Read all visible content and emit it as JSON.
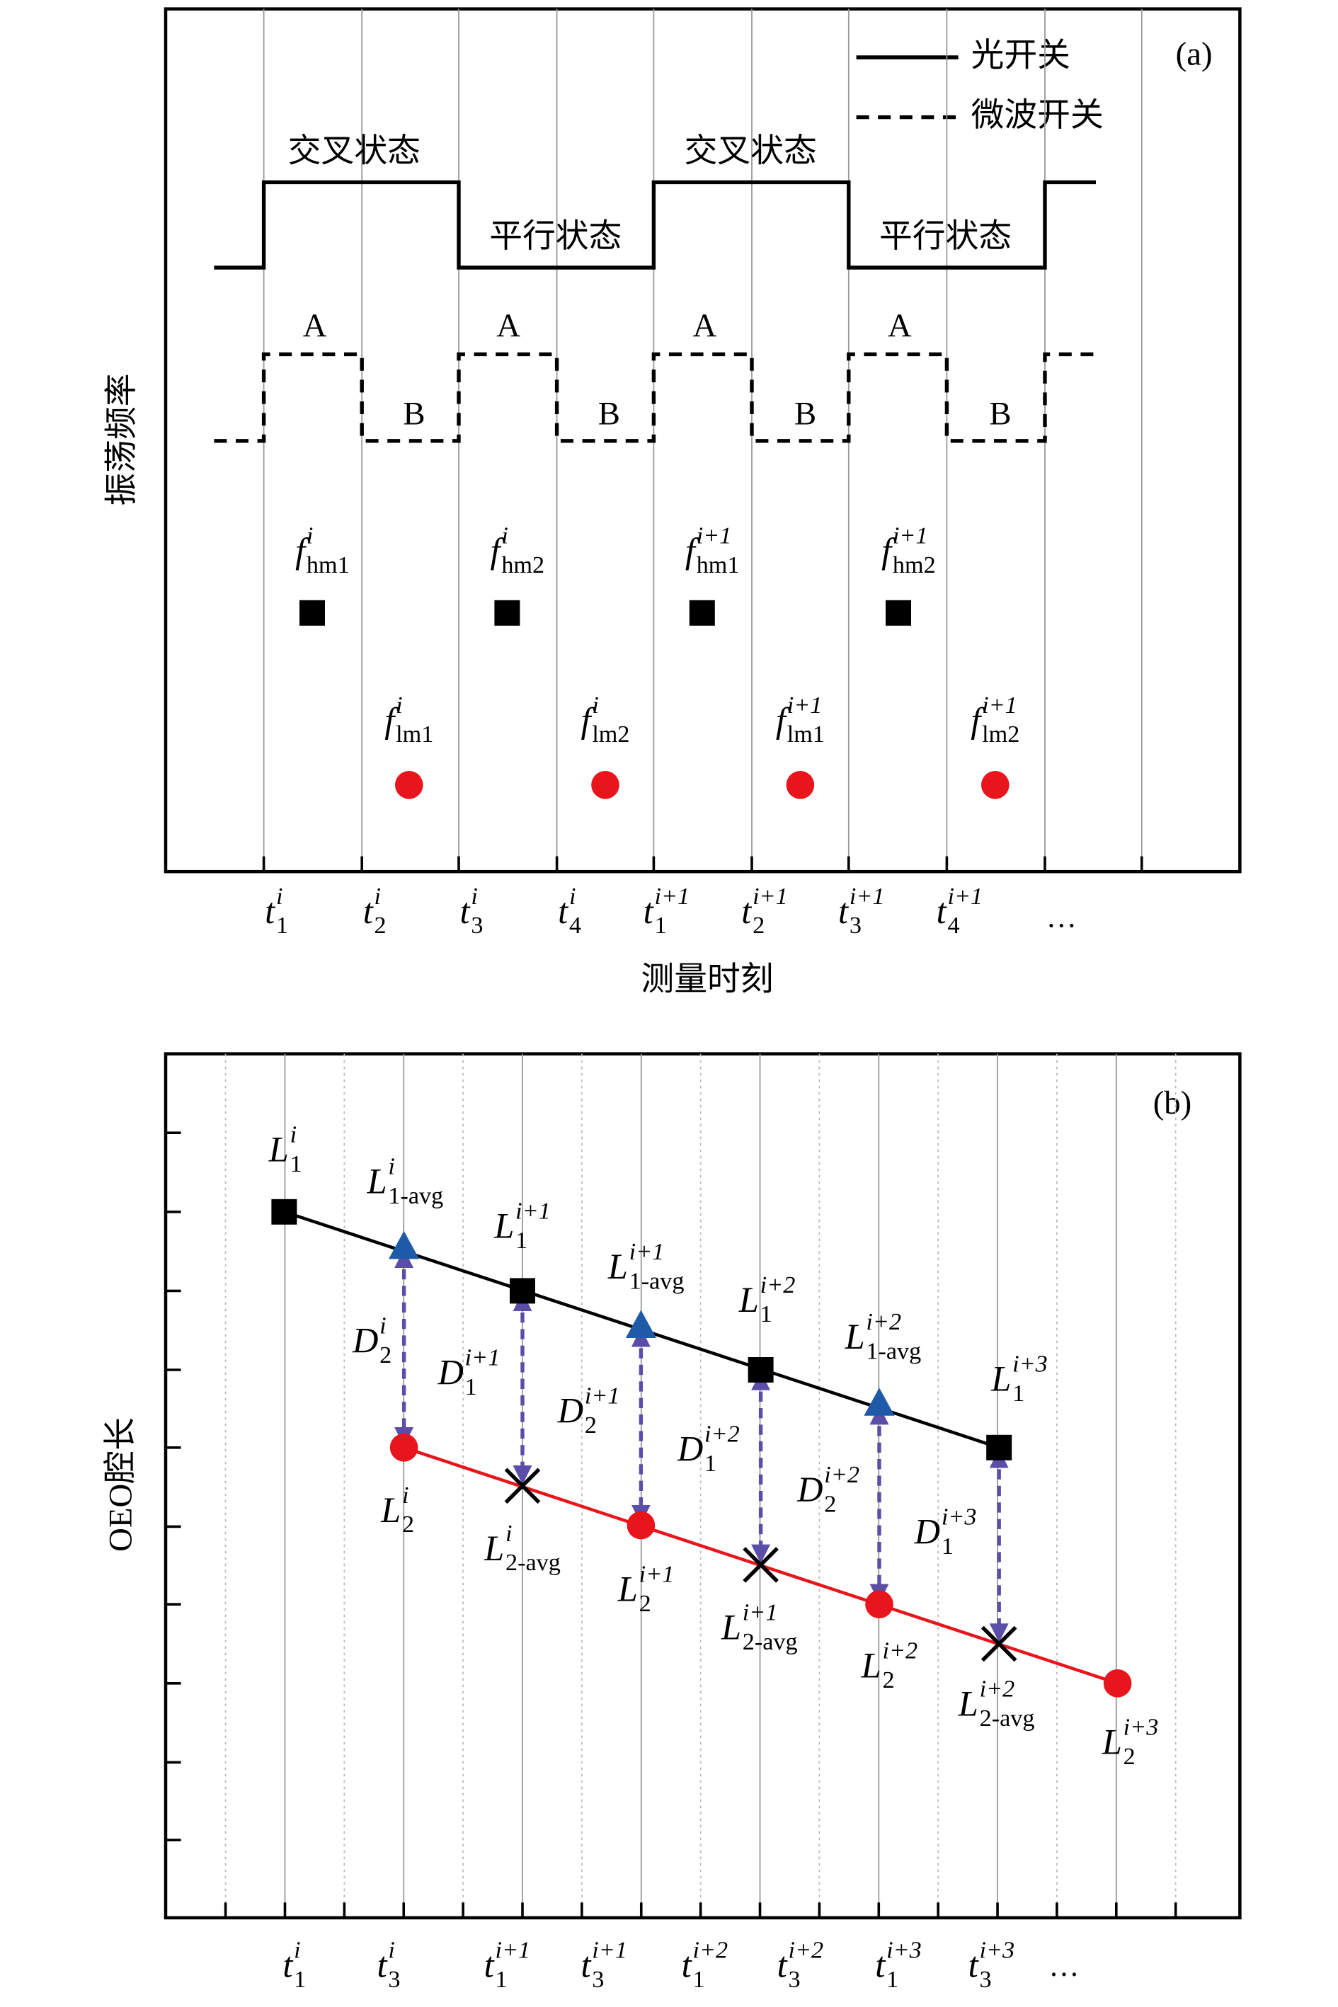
{
  "panel_a": {
    "tag": "(a)",
    "legend": [
      "光开关",
      "微波开关"
    ],
    "y_label": "振荡频率",
    "x_label": "测量时刻",
    "optical_states": [
      "交叉状态",
      "平行状态",
      "交叉状态",
      "平行状态"
    ],
    "microwave_states": [
      "A",
      "B",
      "A",
      "B",
      "A",
      "B",
      "A",
      "B"
    ],
    "high_labels": [
      {
        "base": "f",
        "sup": "i",
        "sub": "hm1"
      },
      {
        "base": "f",
        "sup": "i",
        "sub": "hm2"
      },
      {
        "base": "f",
        "sup": "i+1",
        "sub": "hm1"
      },
      {
        "base": "f",
        "sup": "i+1",
        "sub": "hm2"
      }
    ],
    "low_labels": [
      {
        "base": "f",
        "sup": "i",
        "sub": "lm1"
      },
      {
        "base": "f",
        "sup": "i",
        "sub": "lm2"
      },
      {
        "base": "f",
        "sup": "i+1",
        "sub": "lm1"
      },
      {
        "base": "f",
        "sup": "i+1",
        "sub": "lm2"
      }
    ],
    "time_labels": [
      {
        "base": "t",
        "sup": "i",
        "sub": "1"
      },
      {
        "base": "t",
        "sup": "i",
        "sub": "2"
      },
      {
        "base": "t",
        "sup": "i",
        "sub": "3"
      },
      {
        "base": "t",
        "sup": "i",
        "sub": "4"
      },
      {
        "base": "t",
        "sup": "i+1",
        "sub": "1"
      },
      {
        "base": "t",
        "sup": "i+1",
        "sub": "2"
      },
      {
        "base": "t",
        "sup": "i+1",
        "sub": "3"
      },
      {
        "base": "t",
        "sup": "i+1",
        "sub": "4"
      }
    ],
    "ellipsis": "…"
  },
  "panel_b": {
    "tag": "(b)",
    "y_label": "OEO腔长",
    "l1_labels": [
      {
        "base": "L",
        "sup": "i",
        "sub": "1"
      },
      {
        "base": "L",
        "sup": "i+1",
        "sub": "1"
      },
      {
        "base": "L",
        "sup": "i+2",
        "sub": "1"
      },
      {
        "base": "L",
        "sup": "i+3",
        "sub": "1"
      }
    ],
    "l1_avg_labels": [
      {
        "base": "L",
        "sup": "i",
        "sub": "1-avg"
      },
      {
        "base": "L",
        "sup": "i+1",
        "sub": "1-avg"
      },
      {
        "base": "L",
        "sup": "i+2",
        "sub": "1-avg"
      }
    ],
    "l2_labels": [
      {
        "base": "L",
        "sup": "i",
        "sub": "2"
      },
      {
        "base": "L",
        "sup": "i+1",
        "sub": "2"
      },
      {
        "base": "L",
        "sup": "i+2",
        "sub": "2"
      },
      {
        "base": "L",
        "sup": "i+3",
        "sub": "2"
      }
    ],
    "l2_avg_labels": [
      {
        "base": "L",
        "sup": "i",
        "sub": "2-avg"
      },
      {
        "base": "L",
        "sup": "i+1",
        "sub": "2-avg"
      },
      {
        "base": "L",
        "sup": "i+2",
        "sub": "2-avg"
      }
    ],
    "d_labels": [
      {
        "base": "D",
        "sup": "i",
        "sub": "2"
      },
      {
        "base": "D",
        "sup": "i+1",
        "sub": "1"
      },
      {
        "base": "D",
        "sup": "i+1",
        "sub": "2"
      },
      {
        "base": "D",
        "sup": "i+2",
        "sub": "1"
      },
      {
        "base": "D",
        "sup": "i+2",
        "sub": "2"
      },
      {
        "base": "D",
        "sup": "i+3",
        "sub": "1"
      }
    ],
    "time_labels": [
      {
        "base": "t",
        "sup": "i",
        "sub": "1"
      },
      {
        "base": "t",
        "sup": "i",
        "sub": "3"
      },
      {
        "base": "t",
        "sup": "i+1",
        "sub": "1"
      },
      {
        "base": "t",
        "sup": "i+1",
        "sub": "3"
      },
      {
        "base": "t",
        "sup": "i+2",
        "sub": "1"
      },
      {
        "base": "t",
        "sup": "i+2",
        "sub": "3"
      },
      {
        "base": "t",
        "sup": "i+3",
        "sub": "1"
      },
      {
        "base": "t",
        "sup": "i+3",
        "sub": "3"
      }
    ],
    "ellipsis": "…"
  }
}
